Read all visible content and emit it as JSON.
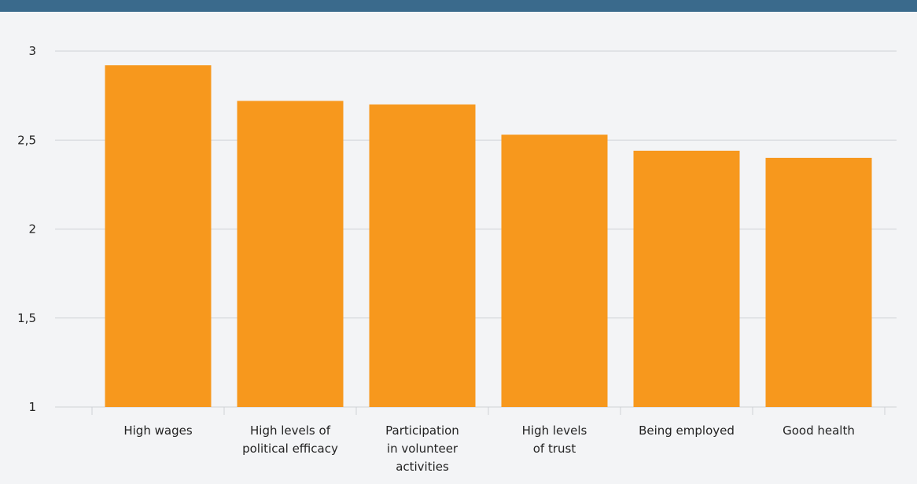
{
  "colors": {
    "top_bar": "#3a6a8c",
    "bar": "#f7981d",
    "grid": "#cfd2d6",
    "background": "#f3f4f6"
  },
  "chart_data": {
    "type": "bar",
    "categories": [
      [
        "High wages"
      ],
      [
        "High levels of",
        "political efficacy"
      ],
      [
        "Participation",
        "in volunteer",
        "activities"
      ],
      [
        "High levels",
        "of trust"
      ],
      [
        "Being employed"
      ],
      [
        "Good health"
      ]
    ],
    "values": [
      2.92,
      2.72,
      2.7,
      2.53,
      2.44,
      2.4
    ],
    "ylim": [
      1,
      3
    ],
    "yticks": [
      1,
      1.5,
      2,
      2.5,
      3
    ],
    "ytick_labels": [
      "1",
      "1,5",
      "2",
      "2,5",
      "3"
    ],
    "grid": true,
    "title": "",
    "xlabel": "",
    "ylabel": ""
  }
}
